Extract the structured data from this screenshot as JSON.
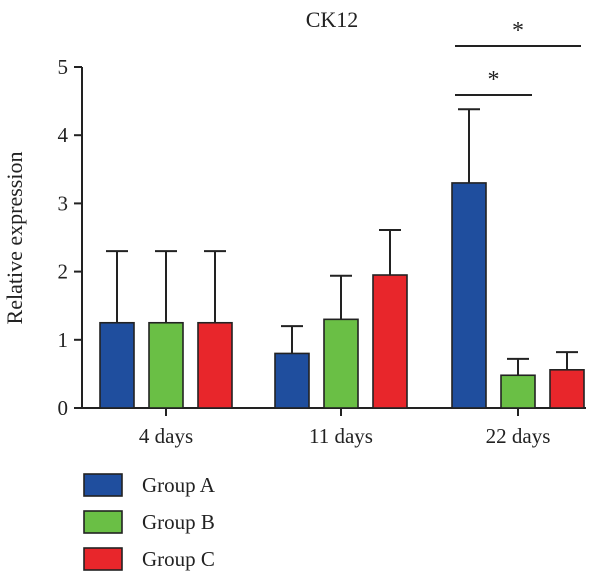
{
  "chart_data": {
    "type": "bar",
    "title": "CK12",
    "xlabel": "",
    "ylabel": "Relative expression",
    "ylim": [
      0,
      5
    ],
    "yticks": [
      0,
      1,
      2,
      3,
      4,
      5
    ],
    "categories": [
      "4 days",
      "11 days",
      "22 days"
    ],
    "series": [
      {
        "name": "Group A",
        "color": "#1f4e9e",
        "values": [
          1.25,
          0.8,
          3.3
        ],
        "errors": [
          1.05,
          0.4,
          1.08
        ]
      },
      {
        "name": "Group B",
        "color": "#6abf45",
        "values": [
          1.25,
          1.3,
          0.48
        ],
        "errors": [
          1.05,
          0.64,
          0.24
        ]
      },
      {
        "name": "Group C",
        "color": "#e8262b",
        "values": [
          1.25,
          1.95,
          0.56
        ],
        "errors": [
          1.05,
          0.66,
          0.26
        ]
      }
    ],
    "legend_position": "bottom-left",
    "annotations": [
      {
        "text": "*",
        "category": "22 days",
        "from_series": "Group A",
        "to_series": "Group B"
      },
      {
        "text": "*",
        "category": "22 days",
        "from_series": "Group A",
        "to_series": "Group C"
      }
    ]
  }
}
